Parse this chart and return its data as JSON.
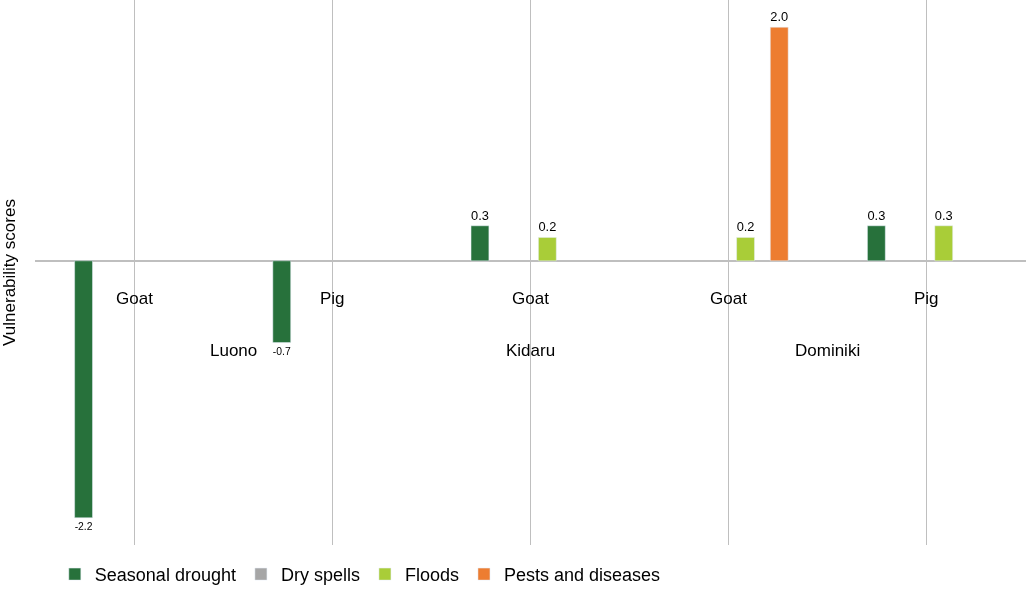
{
  "chart_data": {
    "type": "bar",
    "ylabel": "Vulnerability scores",
    "categories": [
      "Goat",
      "Pig",
      "Goat",
      "Goat",
      "Pig"
    ],
    "annotations": [
      "Luono",
      "Kidaru",
      "Dominiki"
    ],
    "series": [
      {
        "name": "Seasonal drought",
        "color": "#27713b",
        "values": [
          -2.2,
          -0.7,
          0.3,
          null,
          0.3
        ],
        "value_labels": [
          "-2.2",
          "-0.7",
          "0.3",
          null,
          "0.3"
        ]
      },
      {
        "name": "Dry spells",
        "color": "#a6a6a6",
        "values": [
          null,
          null,
          null,
          null,
          null
        ],
        "value_labels": [
          null,
          null,
          null,
          null,
          null
        ]
      },
      {
        "name": "Floods",
        "color": "#a9cd38",
        "values": [
          null,
          null,
          0.2,
          0.2,
          0.3
        ],
        "value_labels": [
          null,
          null,
          "0.2",
          "0.2",
          "0.3"
        ]
      },
      {
        "name": "Pests and diseases",
        "color": "#ed7d31",
        "values": [
          null,
          null,
          null,
          2.0,
          null
        ],
        "value_labels": [
          null,
          null,
          null,
          "2.0",
          null
        ]
      }
    ],
    "grid": "x",
    "legend": "bottom"
  }
}
